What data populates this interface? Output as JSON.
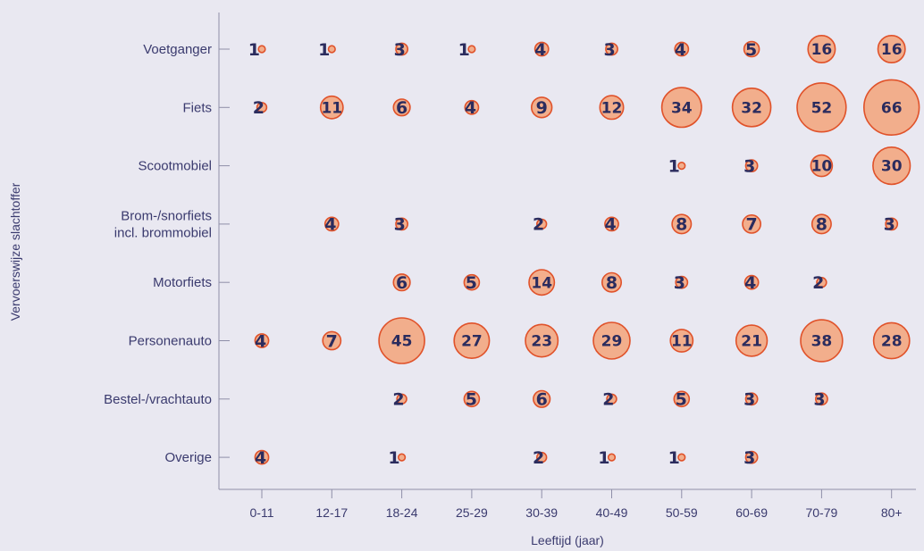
{
  "chart_data": {
    "type": "bubble",
    "title": "",
    "xlabel": "Leeftijd (jaar)",
    "ylabel": "Vervoerswijze slachtoffer",
    "x_categories": [
      "0-11",
      "12-17",
      "18-24",
      "25-29",
      "30-39",
      "40-49",
      "50-59",
      "60-69",
      "70-79",
      "80+"
    ],
    "y_categories": [
      {
        "label": [
          "Voetganger"
        ]
      },
      {
        "label": [
          "Fiets"
        ]
      },
      {
        "label": [
          "Scootmobiel"
        ]
      },
      {
        "label": [
          "Brom-/snorfiets",
          "incl. brommobiel"
        ]
      },
      {
        "label": [
          "Motorfiets"
        ]
      },
      {
        "label": [
          "Personenauto"
        ]
      },
      {
        "label": [
          "Bestel-/vrachtauto"
        ]
      },
      {
        "label": [
          "Overige"
        ]
      }
    ],
    "values": [
      [
        1,
        1,
        3,
        1,
        4,
        3,
        4,
        5,
        16,
        16
      ],
      [
        2,
        11,
        6,
        4,
        9,
        12,
        34,
        32,
        52,
        66
      ],
      [
        null,
        null,
        null,
        null,
        null,
        null,
        1,
        3,
        10,
        30
      ],
      [
        null,
        4,
        3,
        null,
        2,
        4,
        8,
        7,
        8,
        3
      ],
      [
        null,
        null,
        6,
        5,
        14,
        8,
        3,
        4,
        2,
        null
      ],
      [
        4,
        7,
        45,
        27,
        23,
        29,
        11,
        21,
        38,
        28
      ],
      [
        null,
        null,
        2,
        5,
        6,
        2,
        5,
        3,
        3,
        null
      ],
      [
        4,
        null,
        1,
        null,
        2,
        1,
        1,
        3,
        null,
        null
      ]
    ],
    "colors": {
      "bubble_fill": "#f2ae8c",
      "bubble_stroke": "#e0522a",
      "text": "#2b2c5e",
      "background": "#e9e8f1"
    }
  }
}
